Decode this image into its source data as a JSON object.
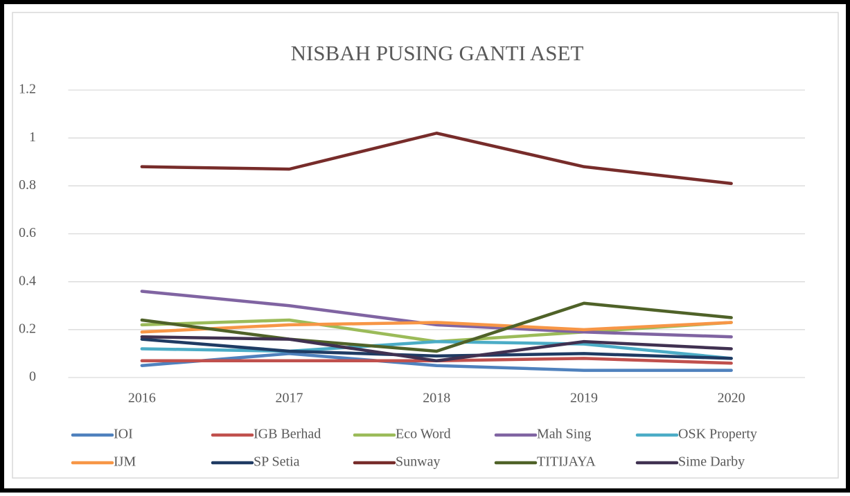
{
  "chart_data": {
    "type": "line",
    "title": "NISBAH PUSING GANTI ASET",
    "categories": [
      "2016",
      "2017",
      "2018",
      "2019",
      "2020"
    ],
    "ylim": [
      0,
      1.2
    ],
    "yticks": [
      0,
      0.2,
      0.4,
      0.6,
      0.8,
      1,
      1.2
    ],
    "grid": true,
    "series": [
      {
        "name": "IOI",
        "color": "#4f81bd",
        "values": [
          0.05,
          0.1,
          0.05,
          0.03,
          0.03
        ]
      },
      {
        "name": "IGB Berhad",
        "color": "#c0504d",
        "values": [
          0.07,
          0.07,
          0.07,
          0.08,
          0.06
        ]
      },
      {
        "name": "Eco Word",
        "color": "#9bbb59",
        "values": [
          0.22,
          0.24,
          0.15,
          0.19,
          0.23
        ]
      },
      {
        "name": "Mah Sing",
        "color": "#8064a2",
        "values": [
          0.36,
          0.3,
          0.22,
          0.19,
          0.17
        ]
      },
      {
        "name": "OSK Property",
        "color": "#4bacc6",
        "values": [
          0.12,
          0.11,
          0.15,
          0.14,
          0.08
        ]
      },
      {
        "name": "IJM",
        "color": "#f79646",
        "values": [
          0.19,
          0.22,
          0.23,
          0.2,
          0.23
        ]
      },
      {
        "name": "SP Setia",
        "color": "#1f3b63",
        "values": [
          0.16,
          0.11,
          0.09,
          0.1,
          0.08
        ]
      },
      {
        "name": "Sunway",
        "color": "#772c2a",
        "values": [
          0.88,
          0.87,
          1.02,
          0.88,
          0.81
        ]
      },
      {
        "name": "TITIJAYA",
        "color": "#4f6228",
        "values": [
          0.24,
          0.16,
          0.11,
          0.31,
          0.25
        ]
      },
      {
        "name": "Sime Darby",
        "color": "#403151",
        "values": [
          0.17,
          0.16,
          0.07,
          0.15,
          0.12
        ]
      }
    ]
  }
}
